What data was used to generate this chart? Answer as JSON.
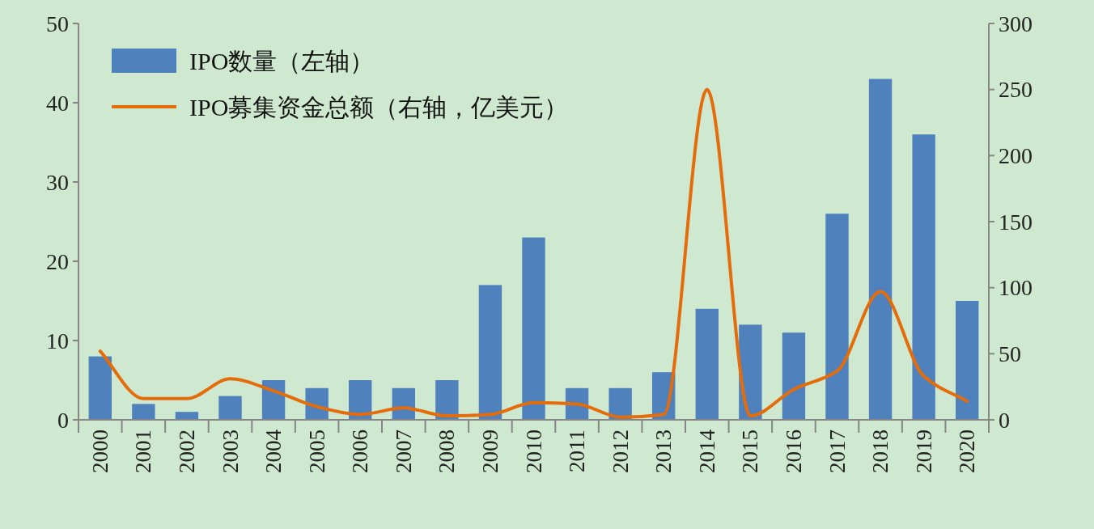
{
  "chart_data": {
    "type": "bar",
    "categories": [
      "2000",
      "2001",
      "2002",
      "2003",
      "2004",
      "2005",
      "2006",
      "2007",
      "2008",
      "2009",
      "2010",
      "2011",
      "2012",
      "2013",
      "2014",
      "2015",
      "2016",
      "2017",
      "2018",
      "2019",
      "2020"
    ],
    "series": [
      {
        "name": "IPO数量（左轴）",
        "color": "#4f81bd",
        "values": [
          8,
          2,
          1,
          3,
          5,
          4,
          5,
          4,
          5,
          17,
          23,
          4,
          4,
          6,
          14,
          12,
          11,
          26,
          43,
          36,
          15
        ]
      },
      {
        "name": "IPO募集资金总额（右轴，亿美元）",
        "type": "line",
        "axis": "y2",
        "color": "#e46c0a",
        "values": [
          52,
          16,
          16,
          31,
          22,
          10,
          4,
          9,
          3,
          4,
          13,
          12,
          2,
          4,
          250,
          3,
          23,
          37,
          97,
          33,
          14
        ]
      }
    ],
    "ylim": [
      0,
      50
    ],
    "yticks": [
      0,
      10,
      20,
      30,
      40,
      50
    ],
    "y2lim": [
      0,
      300
    ],
    "y2ticks": [
      0,
      50,
      100,
      150,
      200,
      250,
      300
    ],
    "legend": "top left"
  }
}
